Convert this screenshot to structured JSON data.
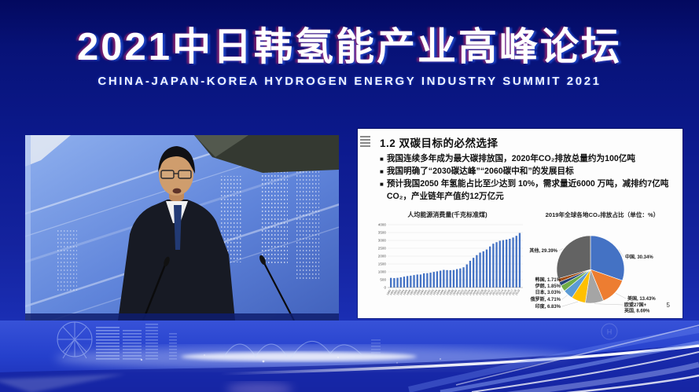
{
  "header": {
    "title": "2021中日韩氢能产业高峰论坛",
    "subtitle": "CHINA-JAPAN-KOREA HYDROGEN ENERGY INDUSTRY SUMMIT 2021"
  },
  "slide": {
    "title": "1.2 双碳目标的必然选择",
    "bullet_marker": "■",
    "bullets": [
      "我国连续多年成为最大碳排放国，2020年CO₂排放总量约为100亿吨",
      "我国明确了“2030碳达峰”“2060碳中和”的发展目标",
      "预计我国2050 年氢能占比至少达到 10%，需求量近6000 万吨，减排约7亿吨CO₂，产业链年产值约12万亿元"
    ],
    "page_number": "5"
  },
  "chart_data": [
    {
      "type": "bar",
      "title": "人均能源消费量(千克标准煤)",
      "xlabel": "",
      "ylabel": "",
      "ylim": [
        0,
        4000
      ],
      "ytick_step": 500,
      "grid": true,
      "bar_color": "#4472C4",
      "categories": [
        "1980",
        "1981",
        "1982",
        "1983",
        "1984",
        "1985",
        "1986",
        "1987",
        "1988",
        "1989",
        "1990",
        "1991",
        "1992",
        "1993",
        "1994",
        "1995",
        "1996",
        "1997",
        "1998",
        "1999",
        "2000",
        "2001",
        "2002",
        "2003",
        "2004",
        "2005",
        "2006",
        "2007",
        "2008",
        "2009",
        "2010",
        "2011",
        "2012",
        "2013",
        "2014",
        "2015",
        "2016",
        "2017",
        "2018",
        "2019"
      ],
      "values": [
        614,
        602,
        617,
        650,
        692,
        732,
        756,
        793,
        826,
        828,
        903,
        912,
        945,
        994,
        1030,
        1074,
        1123,
        1109,
        1101,
        1116,
        1172,
        1214,
        1289,
        1471,
        1701,
        1890,
        2063,
        2222,
        2306,
        2421,
        2613,
        2790,
        2886,
        2977,
        3019,
        3052,
        3101,
        3182,
        3291,
        3471
      ]
    },
    {
      "type": "pie",
      "title": "2019年全球各地CO₂排放占比（单位：%）",
      "start_angle_deg": 0,
      "direction": "clockwise",
      "labels_outside": true,
      "legend_position": "none",
      "slices": [
        {
          "label": "中国",
          "value": 30.34,
          "color": "#4472C4"
        },
        {
          "label": "美国",
          "value": 13.43,
          "color": "#ED7D31"
        },
        {
          "label": "欧盟27国+英国",
          "value": 8.69,
          "color": "#A5A5A5"
        },
        {
          "label": "印度",
          "value": 6.83,
          "color": "#FFC000"
        },
        {
          "label": "俄罗斯",
          "value": 4.71,
          "color": "#5B9BD5"
        },
        {
          "label": "日本",
          "value": 3.03,
          "color": "#70AD47"
        },
        {
          "label": "伊朗",
          "value": 1.85,
          "color": "#264478"
        },
        {
          "label": "韩国",
          "value": 1.71,
          "color": "#9E480E"
        },
        {
          "label": "其他",
          "value": 29.39,
          "color": "#636363"
        }
      ]
    }
  ],
  "watermark": "H"
}
